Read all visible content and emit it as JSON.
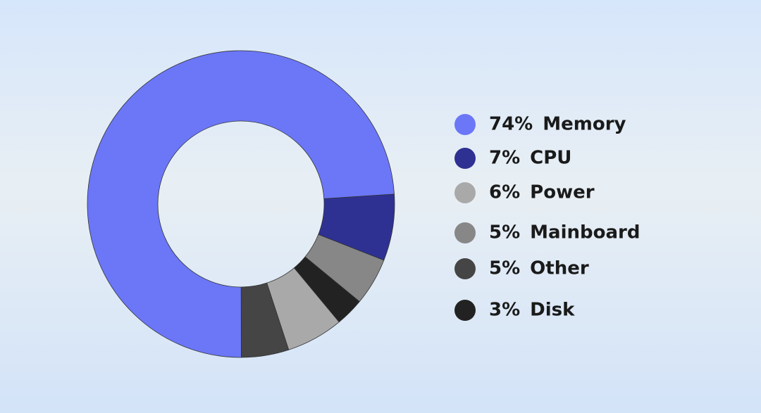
{
  "chart_data": {
    "type": "donut",
    "categories": [
      "Memory",
      "CPU",
      "Power",
      "Mainboard",
      "Other",
      "Disk"
    ],
    "values": [
      74,
      7,
      6,
      5,
      5,
      3
    ],
    "value_labels": [
      "74%",
      "7%",
      "6%",
      "5%",
      "5%",
      "3%"
    ],
    "colors": [
      "#6b77f7",
      "#2e3192",
      "#a9a9a9",
      "#878787",
      "#454545",
      "#222222"
    ]
  }
}
